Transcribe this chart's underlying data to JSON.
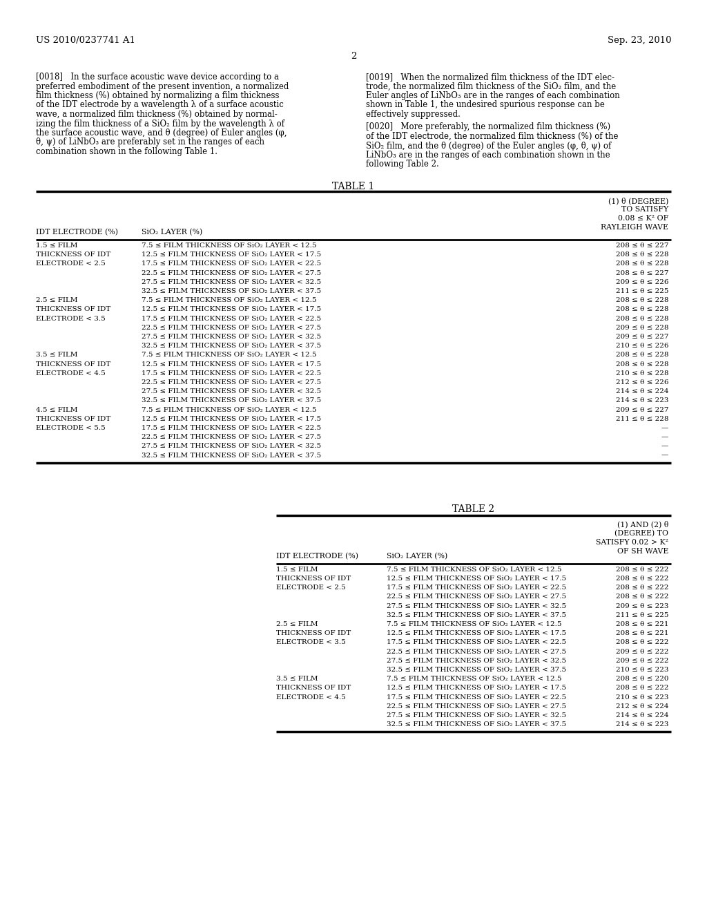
{
  "patent_number": "US 2010/0237741 A1",
  "date": "Sep. 23, 2010",
  "page_number": "2",
  "background_color": "#ffffff",
  "para18_lines": [
    "[0018]   In the surface acoustic wave device according to a",
    "preferred embodiment of the present invention, a normalized",
    "film thickness (%) obtained by normalizing a film thickness",
    "of the IDT electrode by a wavelength λ of a surface acoustic",
    "wave, a normalized film thickness (%) obtained by normal-",
    "izing the film thickness of a SiO₂ film by the wavelength λ of",
    "the surface acoustic wave, and θ (degree) of Euler angles (φ,",
    "θ, ψ) of LiNbO₃ are preferably set in the ranges of each",
    "combination shown in the following Table 1."
  ],
  "para19_lines": [
    "[0019]   When the normalized film thickness of the IDT elec-",
    "trode, the normalized film thickness of the SiO₂ film, and the",
    "Euler angles of LiNbO₃ are in the ranges of each combination",
    "shown in Table 1, the undesired spurious response can be",
    "effectively suppressed."
  ],
  "para20_lines": [
    "[0020]   More preferably, the normalized film thickness (%)",
    "of the IDT electrode, the normalized film thickness (%) of the",
    "SiO₂ film, and the θ (degree) of the Euler angles (φ, θ, ψ) of",
    "LiNbO₃ are in the ranges of each combination shown in the",
    "following Table 2."
  ],
  "table1_title": "TABLE 1",
  "table1_col1_header": "IDT ELECTRODE (%)",
  "table1_col2_header": "SiO₂ LAYER (%)",
  "table1_col3_header_lines": [
    "(1) θ (DEGREE)",
    "TO SATISFY",
    "0.08 ≤ K² OF",
    "RAYLEIGH WAVE"
  ],
  "table1_rows": [
    [
      "1.5 ≤ FILM",
      "7.5 ≤ FILM THICKNESS OF SiO₂ LAYER < 12.5",
      "208 ≤ θ ≤ 227"
    ],
    [
      "THICKNESS OF IDT",
      "12.5 ≤ FILM THICKNESS OF SiO₂ LAYER < 17.5",
      "208 ≤ θ ≤ 228"
    ],
    [
      "ELECTRODE < 2.5",
      "17.5 ≤ FILM THICKNESS OF SiO₂ LAYER < 22.5",
      "208 ≤ θ ≤ 228"
    ],
    [
      "",
      "22.5 ≤ FILM THICKNESS OF SiO₂ LAYER < 27.5",
      "208 ≤ θ ≤ 227"
    ],
    [
      "",
      "27.5 ≤ FILM THICKNESS OF SiO₂ LAYER < 32.5",
      "209 ≤ θ ≤ 226"
    ],
    [
      "",
      "32.5 ≤ FILM THICKNESS OF SiO₂ LAYER < 37.5",
      "211 ≤ θ ≤ 225"
    ],
    [
      "2.5 ≤ FILM",
      "7.5 ≤ FILM THICKNESS OF SiO₂ LAYER < 12.5",
      "208 ≤ θ ≤ 228"
    ],
    [
      "THICKNESS OF IDT",
      "12.5 ≤ FILM THICKNESS OF SiO₂ LAYER < 17.5",
      "208 ≤ θ ≤ 228"
    ],
    [
      "ELECTRODE < 3.5",
      "17.5 ≤ FILM THICKNESS OF SiO₂ LAYER < 22.5",
      "208 ≤ θ ≤ 228"
    ],
    [
      "",
      "22.5 ≤ FILM THICKNESS OF SiO₂ LAYER < 27.5",
      "209 ≤ θ ≤ 228"
    ],
    [
      "",
      "27.5 ≤ FILM THICKNESS OF SiO₂ LAYER < 32.5",
      "209 ≤ θ ≤ 227"
    ],
    [
      "",
      "32.5 ≤ FILM THICKNESS OF SiO₂ LAYER < 37.5",
      "210 ≤ θ ≤ 226"
    ],
    [
      "3.5 ≤ FILM",
      "7.5 ≤ FILM THICKNESS OF SiO₂ LAYER < 12.5",
      "208 ≤ θ ≤ 228"
    ],
    [
      "THICKNESS OF IDT",
      "12.5 ≤ FILM THICKNESS OF SiO₂ LAYER < 17.5",
      "208 ≤ θ ≤ 228"
    ],
    [
      "ELECTRODE < 4.5",
      "17.5 ≤ FILM THICKNESS OF SiO₂ LAYER < 22.5",
      "210 ≤ θ ≤ 228"
    ],
    [
      "",
      "22.5 ≤ FILM THICKNESS OF SiO₂ LAYER < 27.5",
      "212 ≤ θ ≤ 226"
    ],
    [
      "",
      "27.5 ≤ FILM THICKNESS OF SiO₂ LAYER < 32.5",
      "214 ≤ θ ≤ 224"
    ],
    [
      "",
      "32.5 ≤ FILM THICKNESS OF SiO₂ LAYER < 37.5",
      "214 ≤ θ ≤ 223"
    ],
    [
      "4.5 ≤ FILM",
      "7.5 ≤ FILM THICKNESS OF SiO₂ LAYER < 12.5",
      "209 ≤ θ ≤ 227"
    ],
    [
      "THICKNESS OF IDT",
      "12.5 ≤ FILM THICKNESS OF SiO₂ LAYER < 17.5",
      "211 ≤ θ ≤ 228"
    ],
    [
      "ELECTRODE < 5.5",
      "17.5 ≤ FILM THICKNESS OF SiO₂ LAYER < 22.5",
      "—"
    ],
    [
      "",
      "22.5 ≤ FILM THICKNESS OF SiO₂ LAYER < 27.5",
      "—"
    ],
    [
      "",
      "27.5 ≤ FILM THICKNESS OF SiO₂ LAYER < 32.5",
      "—"
    ],
    [
      "",
      "32.5 ≤ FILM THICKNESS OF SiO₂ LAYER < 37.5",
      "—"
    ]
  ],
  "table2_title": "TABLE 2",
  "table2_col1_header": "IDT ELECTRODE (%)",
  "table2_col2_header": "SiO₂ LAYER (%)",
  "table2_col3_header_lines": [
    "(1) AND (2) θ",
    "(DEGREE) TO",
    "SATISFY 0.02 > K²",
    "OF SH WAVE"
  ],
  "table2_rows": [
    [
      "1.5 ≤ FILM",
      "7.5 ≤ FILM THICKNESS OF SiO₂ LAYER < 12.5",
      "208 ≤ θ ≤ 222"
    ],
    [
      "THICKNESS OF IDT",
      "12.5 ≤ FILM THICKNESS OF SiO₂ LAYER < 17.5",
      "208 ≤ θ ≤ 222"
    ],
    [
      "ELECTRODE < 2.5",
      "17.5 ≤ FILM THICKNESS OF SiO₂ LAYER < 22.5",
      "208 ≤ θ ≤ 222"
    ],
    [
      "",
      "22.5 ≤ FILM THICKNESS OF SiO₂ LAYER < 27.5",
      "208 ≤ θ ≤ 222"
    ],
    [
      "",
      "27.5 ≤ FILM THICKNESS OF SiO₂ LAYER < 32.5",
      "209 ≤ θ ≤ 223"
    ],
    [
      "",
      "32.5 ≤ FILM THICKNESS OF SiO₂ LAYER < 37.5",
      "211 ≤ θ ≤ 225"
    ],
    [
      "2.5 ≤ FILM",
      "7.5 ≤ FILM THICKNESS OF SiO₂ LAYER < 12.5",
      "208 ≤ θ ≤ 221"
    ],
    [
      "THICKNESS OF IDT",
      "12.5 ≤ FILM THICKNESS OF SiO₂ LAYER < 17.5",
      "208 ≤ θ ≤ 221"
    ],
    [
      "ELECTRODE < 3.5",
      "17.5 ≤ FILM THICKNESS OF SiO₂ LAYER < 22.5",
      "208 ≤ θ ≤ 222"
    ],
    [
      "",
      "22.5 ≤ FILM THICKNESS OF SiO₂ LAYER < 27.5",
      "209 ≤ θ ≤ 222"
    ],
    [
      "",
      "27.5 ≤ FILM THICKNESS OF SiO₂ LAYER < 32.5",
      "209 ≤ θ ≤ 222"
    ],
    [
      "",
      "32.5 ≤ FILM THICKNESS OF SiO₂ LAYER < 37.5",
      "210 ≤ θ ≤ 223"
    ],
    [
      "3.5 ≤ FILM",
      "7.5 ≤ FILM THICKNESS OF SiO₂ LAYER < 12.5",
      "208 ≤ θ ≤ 220"
    ],
    [
      "THICKNESS OF IDT",
      "12.5 ≤ FILM THICKNESS OF SiO₂ LAYER < 17.5",
      "208 ≤ θ ≤ 222"
    ],
    [
      "ELECTRODE < 4.5",
      "17.5 ≤ FILM THICKNESS OF SiO₂ LAYER < 22.5",
      "210 ≤ θ ≤ 223"
    ],
    [
      "",
      "22.5 ≤ FILM THICKNESS OF SiO₂ LAYER < 27.5",
      "212 ≤ θ ≤ 224"
    ],
    [
      "",
      "27.5 ≤ FILM THICKNESS OF SiO₂ LAYER < 32.5",
      "214 ≤ θ ≤ 224"
    ],
    [
      "",
      "32.5 ≤ FILM THICKNESS OF SiO₂ LAYER < 37.5",
      "214 ≤ θ ≤ 223"
    ]
  ]
}
